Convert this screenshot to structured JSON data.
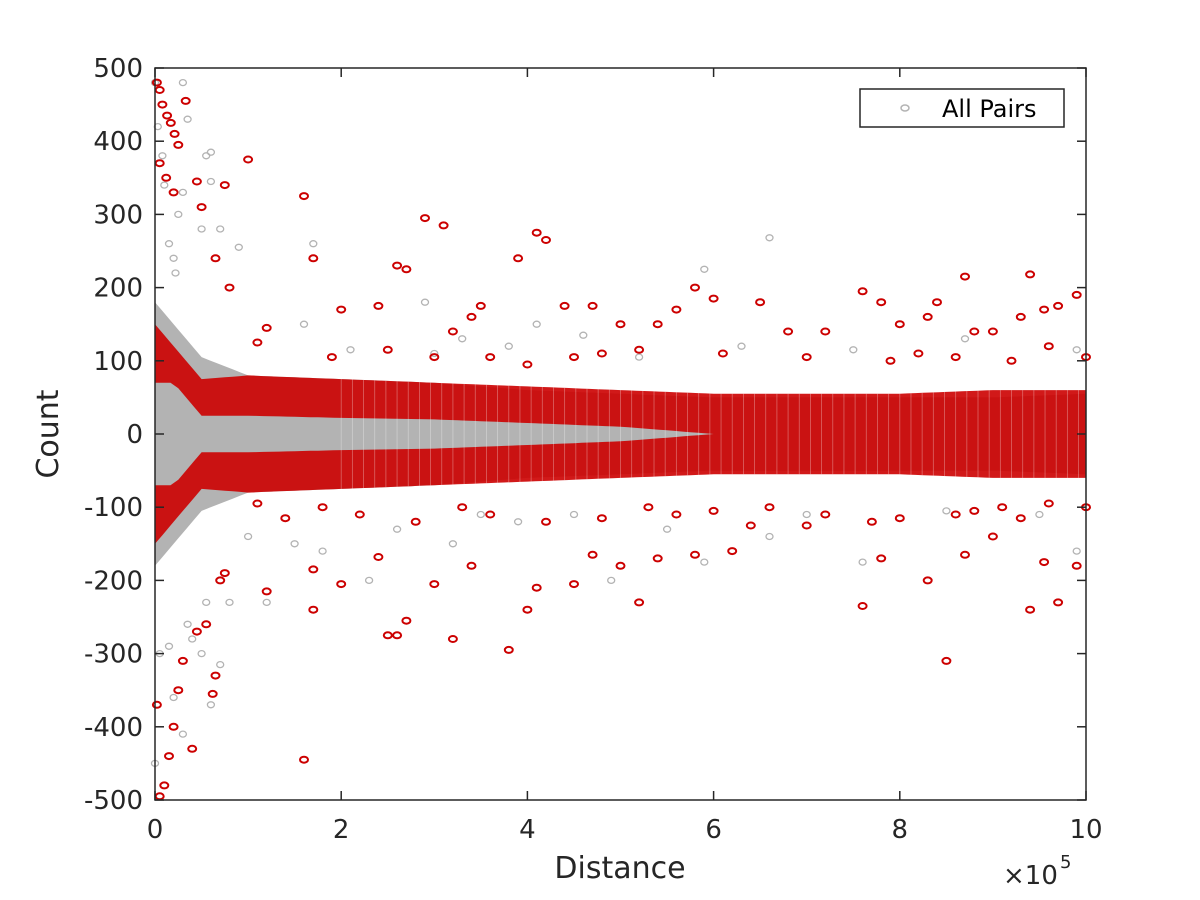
{
  "chart_data": {
    "type": "scatter",
    "title": "",
    "xlabel": "Distance",
    "ylabel": "Count",
    "xlim": [
      0,
      1000000
    ],
    "ylim": [
      -500,
      500
    ],
    "x_ticks": [
      0,
      200000,
      400000,
      600000,
      800000,
      1000000
    ],
    "x_tick_labels": [
      "0",
      "2",
      "4",
      "6",
      "8",
      "10"
    ],
    "x_exponent_label": "×10",
    "x_exponent_power": "5",
    "y_ticks": [
      -500,
      -400,
      -300,
      -200,
      -100,
      0,
      100,
      200,
      300,
      400,
      500
    ],
    "y_tick_labels": [
      "-500",
      "-400",
      "-300",
      "-200",
      "-100",
      "0",
      "100",
      "200",
      "300",
      "400",
      "500"
    ],
    "grid": false,
    "legend_position": "top-right",
    "legend_entries": [
      "All Pairs"
    ],
    "colors": {
      "all_pairs": "#b3b3b3",
      "highlighted": "#cc0000",
      "axis": "#262626"
    },
    "band_halfwidth": {
      "x": [
        0,
        20000,
        50000,
        100000,
        200000,
        300000,
        400000,
        500000,
        600000,
        700000,
        800000,
        900000,
        1000000
      ],
      "gray": [
        180,
        150,
        105,
        80,
        75,
        70,
        60,
        55,
        50,
        50,
        50,
        50,
        55
      ],
      "red_outer": [
        150,
        120,
        75,
        80,
        75,
        70,
        65,
        60,
        55,
        55,
        55,
        60,
        60
      ],
      "red_inner": [
        70,
        70,
        25,
        25,
        22,
        20,
        15,
        10,
        0,
        0,
        0,
        0,
        0
      ]
    },
    "series": [
      {
        "name": "All Pairs",
        "color": "#b3b3b3",
        "points": [
          [
            0,
            480
          ],
          [
            3000,
            420
          ],
          [
            8000,
            380
          ],
          [
            15000,
            260
          ],
          [
            22000,
            220
          ],
          [
            30000,
            480
          ],
          [
            35000,
            430
          ],
          [
            55000,
            380
          ],
          [
            60000,
            385
          ],
          [
            70000,
            280
          ],
          [
            90000,
            255
          ],
          [
            60000,
            345
          ],
          [
            50000,
            280
          ],
          [
            30000,
            330
          ],
          [
            20000,
            240
          ],
          [
            25000,
            300
          ],
          [
            10000,
            340
          ],
          [
            0,
            -450
          ],
          [
            5000,
            -300
          ],
          [
            15000,
            -290
          ],
          [
            20000,
            -360
          ],
          [
            30000,
            -410
          ],
          [
            35000,
            -260
          ],
          [
            50000,
            -300
          ],
          [
            60000,
            -370
          ],
          [
            70000,
            -315
          ],
          [
            80000,
            -230
          ],
          [
            55000,
            -230
          ],
          [
            40000,
            -280
          ],
          [
            160000,
            150
          ],
          [
            170000,
            260
          ],
          [
            210000,
            115
          ],
          [
            300000,
            110
          ],
          [
            330000,
            130
          ],
          [
            380000,
            120
          ],
          [
            520000,
            105
          ],
          [
            590000,
            225
          ],
          [
            660000,
            268
          ],
          [
            750000,
            115
          ],
          [
            990000,
            115
          ],
          [
            180000,
            -160
          ],
          [
            230000,
            -200
          ],
          [
            320000,
            -150
          ],
          [
            390000,
            -120
          ],
          [
            490000,
            -200
          ],
          [
            590000,
            -175
          ],
          [
            660000,
            -140
          ],
          [
            760000,
            -175
          ],
          [
            990000,
            -160
          ],
          [
            290000,
            180
          ],
          [
            410000,
            150
          ],
          [
            460000,
            135
          ],
          [
            630000,
            120
          ],
          [
            870000,
            130
          ],
          [
            100000,
            -140
          ],
          [
            120000,
            -230
          ],
          [
            150000,
            -150
          ],
          [
            260000,
            -130
          ],
          [
            350000,
            -110
          ],
          [
            450000,
            -110
          ],
          [
            550000,
            -130
          ],
          [
            700000,
            -110
          ],
          [
            850000,
            -105
          ],
          [
            950000,
            -110
          ]
        ]
      },
      {
        "name": "",
        "color": "#cc0000",
        "points": [
          [
            2000,
            480
          ],
          [
            5000,
            470
          ],
          [
            8000,
            450
          ],
          [
            13000,
            435
          ],
          [
            17000,
            425
          ],
          [
            21000,
            410
          ],
          [
            25000,
            395
          ],
          [
            5000,
            370
          ],
          [
            12000,
            350
          ],
          [
            20000,
            330
          ],
          [
            33000,
            455
          ],
          [
            45000,
            345
          ],
          [
            50000,
            310
          ],
          [
            75000,
            340
          ],
          [
            100000,
            375
          ],
          [
            65000,
            240
          ],
          [
            80000,
            200
          ],
          [
            120000,
            145
          ],
          [
            160000,
            325
          ],
          [
            170000,
            240
          ],
          [
            200000,
            170
          ],
          [
            240000,
            175
          ],
          [
            260000,
            230
          ],
          [
            270000,
            225
          ],
          [
            290000,
            295
          ],
          [
            310000,
            285
          ],
          [
            350000,
            175
          ],
          [
            390000,
            240
          ],
          [
            400000,
            95
          ],
          [
            410000,
            275
          ],
          [
            420000,
            265
          ],
          [
            440000,
            175
          ],
          [
            470000,
            175
          ],
          [
            500000,
            150
          ],
          [
            540000,
            150
          ],
          [
            560000,
            170
          ],
          [
            580000,
            200
          ],
          [
            600000,
            185
          ],
          [
            650000,
            180
          ],
          [
            680000,
            140
          ],
          [
            720000,
            140
          ],
          [
            760000,
            195
          ],
          [
            780000,
            180
          ],
          [
            800000,
            150
          ],
          [
            830000,
            160
          ],
          [
            840000,
            180
          ],
          [
            870000,
            215
          ],
          [
            880000,
            140
          ],
          [
            900000,
            140
          ],
          [
            930000,
            160
          ],
          [
            940000,
            218
          ],
          [
            955000,
            170
          ],
          [
            970000,
            175
          ],
          [
            990000,
            190
          ],
          [
            110000,
            125
          ],
          [
            190000,
            105
          ],
          [
            250000,
            115
          ],
          [
            300000,
            105
          ],
          [
            320000,
            140
          ],
          [
            340000,
            160
          ],
          [
            360000,
            105
          ],
          [
            450000,
            105
          ],
          [
            480000,
            110
          ],
          [
            520000,
            115
          ],
          [
            610000,
            110
          ],
          [
            700000,
            105
          ],
          [
            790000,
            100
          ],
          [
            820000,
            110
          ],
          [
            860000,
            105
          ],
          [
            920000,
            100
          ],
          [
            960000,
            120
          ],
          [
            1000000,
            105
          ],
          [
            2000,
            -370
          ],
          [
            5000,
            -495
          ],
          [
            10000,
            -480
          ],
          [
            15000,
            -440
          ],
          [
            20000,
            -400
          ],
          [
            25000,
            -350
          ],
          [
            30000,
            -310
          ],
          [
            40000,
            -430
          ],
          [
            45000,
            -270
          ],
          [
            55000,
            -260
          ],
          [
            62000,
            -355
          ],
          [
            65000,
            -330
          ],
          [
            70000,
            -200
          ],
          [
            75000,
            -190
          ],
          [
            120000,
            -215
          ],
          [
            160000,
            -445
          ],
          [
            170000,
            -240
          ],
          [
            170000,
            -185
          ],
          [
            200000,
            -205
          ],
          [
            240000,
            -168
          ],
          [
            250000,
            -275
          ],
          [
            260000,
            -275
          ],
          [
            270000,
            -255
          ],
          [
            300000,
            -205
          ],
          [
            320000,
            -280
          ],
          [
            340000,
            -180
          ],
          [
            380000,
            -295
          ],
          [
            400000,
            -240
          ],
          [
            410000,
            -210
          ],
          [
            450000,
            -205
          ],
          [
            470000,
            -165
          ],
          [
            500000,
            -180
          ],
          [
            520000,
            -230
          ],
          [
            540000,
            -170
          ],
          [
            580000,
            -165
          ],
          [
            620000,
            -160
          ],
          [
            640000,
            -125
          ],
          [
            700000,
            -125
          ],
          [
            760000,
            -235
          ],
          [
            770000,
            -120
          ],
          [
            780000,
            -170
          ],
          [
            830000,
            -200
          ],
          [
            850000,
            -310
          ],
          [
            870000,
            -165
          ],
          [
            900000,
            -140
          ],
          [
            940000,
            -240
          ],
          [
            955000,
            -175
          ],
          [
            970000,
            -230
          ],
          [
            990000,
            -180
          ],
          [
            110000,
            -95
          ],
          [
            140000,
            -115
          ],
          [
            180000,
            -100
          ],
          [
            220000,
            -110
          ],
          [
            280000,
            -120
          ],
          [
            330000,
            -100
          ],
          [
            360000,
            -110
          ],
          [
            420000,
            -120
          ],
          [
            480000,
            -115
          ],
          [
            530000,
            -100
          ],
          [
            560000,
            -110
          ],
          [
            600000,
            -105
          ],
          [
            660000,
            -100
          ],
          [
            720000,
            -110
          ],
          [
            800000,
            -115
          ],
          [
            860000,
            -110
          ],
          [
            880000,
            -105
          ],
          [
            910000,
            -100
          ],
          [
            930000,
            -115
          ],
          [
            960000,
            -95
          ],
          [
            1000000,
            -100
          ]
        ]
      }
    ]
  }
}
